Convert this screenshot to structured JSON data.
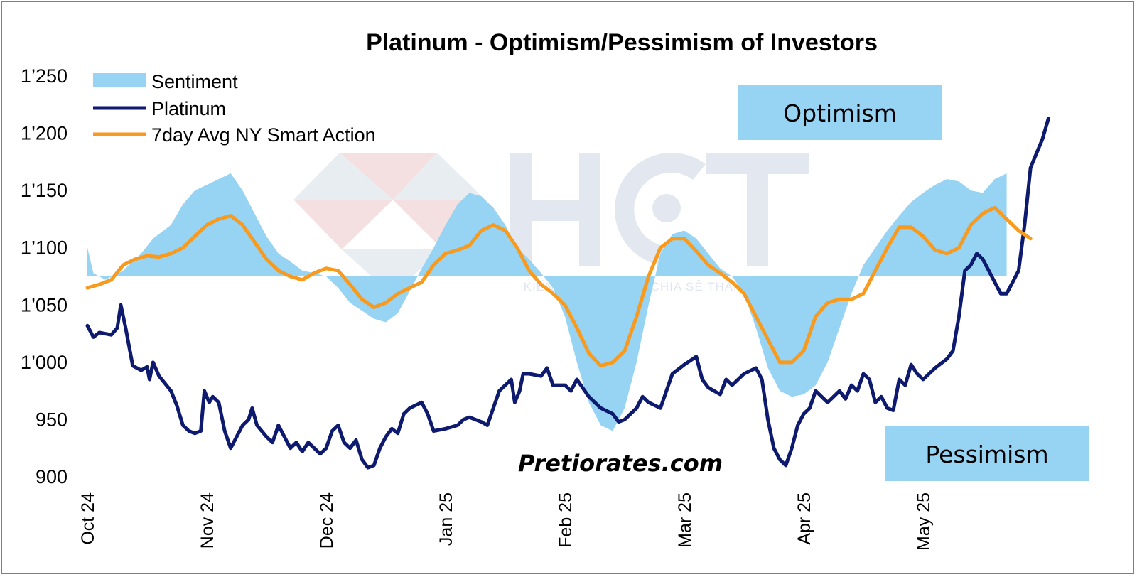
{
  "chart_data": {
    "type": "line",
    "title": "Platinum - Optimism/Pessimism of Investors",
    "ylim": [
      900,
      1250
    ],
    "yticks": [
      "1’250",
      "1’200",
      "1’150",
      "1’100",
      "1’050",
      "1’000",
      "950",
      "900"
    ],
    "ytick_values": [
      1250,
      1200,
      1150,
      1100,
      1050,
      1000,
      950,
      900
    ],
    "xlim": [
      0,
      8.6
    ],
    "xticks": [
      {
        "label": "Oct 24",
        "x": 0
      },
      {
        "label": "Nov 24",
        "x": 1
      },
      {
        "label": "Dec 24",
        "x": 2
      },
      {
        "label": "Jan 25",
        "x": 3
      },
      {
        "label": "Feb 25",
        "x": 4
      },
      {
        "label": "Mar 25",
        "x": 5
      },
      {
        "label": "Apr 25",
        "x": 6
      },
      {
        "label": "May 25",
        "x": 7
      }
    ],
    "legend": [
      "Sentiment",
      "Platinum",
      "7day Avg NY Smart Action"
    ],
    "legend_position": "top-left",
    "zones": {
      "optimism": "Optimism",
      "pessimism": "Pessimism"
    },
    "credit": "Pretiorates.com",
    "watermark": {
      "logo": "HCT",
      "tagline": "KIẾN TẠO GIÁ TRỊ - CHIA SẺ THÀNH CÔNG"
    },
    "sentiment_baseline": 1075,
    "series": [
      {
        "name": "Sentiment",
        "color": "#97d4f4",
        "points": [
          [
            0,
            1100
          ],
          [
            0.05,
            1078
          ],
          [
            0.15,
            1072
          ],
          [
            0.3,
            1080
          ],
          [
            0.45,
            1095
          ],
          [
            0.55,
            1108
          ],
          [
            0.7,
            1120
          ],
          [
            0.8,
            1138
          ],
          [
            0.9,
            1150
          ],
          [
            1.0,
            1155
          ],
          [
            1.1,
            1160
          ],
          [
            1.2,
            1165
          ],
          [
            1.3,
            1150
          ],
          [
            1.4,
            1130
          ],
          [
            1.5,
            1110
          ],
          [
            1.6,
            1095
          ],
          [
            1.7,
            1088
          ],
          [
            1.8,
            1080
          ],
          [
            1.9,
            1078
          ],
          [
            2.0,
            1075
          ],
          [
            2.1,
            1065
          ],
          [
            2.2,
            1052
          ],
          [
            2.3,
            1045
          ],
          [
            2.4,
            1038
          ],
          [
            2.5,
            1035
          ],
          [
            2.6,
            1043
          ],
          [
            2.7,
            1062
          ],
          [
            2.8,
            1082
          ],
          [
            2.9,
            1100
          ],
          [
            3.0,
            1120
          ],
          [
            3.1,
            1138
          ],
          [
            3.2,
            1148
          ],
          [
            3.3,
            1145
          ],
          [
            3.4,
            1135
          ],
          [
            3.5,
            1120
          ],
          [
            3.6,
            1100
          ],
          [
            3.7,
            1090
          ],
          [
            3.8,
            1078
          ],
          [
            3.9,
            1065
          ],
          [
            4.0,
            1040
          ],
          [
            4.1,
            1000
          ],
          [
            4.2,
            965
          ],
          [
            4.3,
            945
          ],
          [
            4.4,
            940
          ],
          [
            4.5,
            960
          ],
          [
            4.6,
            1000
          ],
          [
            4.7,
            1050
          ],
          [
            4.8,
            1095
          ],
          [
            4.9,
            1112
          ],
          [
            5.0,
            1115
          ],
          [
            5.1,
            1108
          ],
          [
            5.2,
            1095
          ],
          [
            5.3,
            1082
          ],
          [
            5.4,
            1075
          ],
          [
            5.5,
            1060
          ],
          [
            5.6,
            1030
          ],
          [
            5.7,
            995
          ],
          [
            5.8,
            975
          ],
          [
            5.9,
            970
          ],
          [
            6.0,
            972
          ],
          [
            6.1,
            980
          ],
          [
            6.2,
            1000
          ],
          [
            6.3,
            1030
          ],
          [
            6.4,
            1060
          ],
          [
            6.5,
            1085
          ],
          [
            6.6,
            1100
          ],
          [
            6.7,
            1115
          ],
          [
            6.8,
            1128
          ],
          [
            6.9,
            1140
          ],
          [
            7.0,
            1148
          ],
          [
            7.1,
            1155
          ],
          [
            7.2,
            1160
          ],
          [
            7.3,
            1158
          ],
          [
            7.4,
            1150
          ],
          [
            7.5,
            1148
          ],
          [
            7.6,
            1160
          ],
          [
            7.7,
            1165
          ]
        ]
      },
      {
        "name": "Platinum",
        "color": "#0d1a6e",
        "points": [
          [
            0,
            1032
          ],
          [
            0.05,
            1022
          ],
          [
            0.1,
            1026
          ],
          [
            0.2,
            1024
          ],
          [
            0.25,
            1030
          ],
          [
            0.28,
            1050
          ],
          [
            0.32,
            1030
          ],
          [
            0.38,
            997
          ],
          [
            0.45,
            993
          ],
          [
            0.5,
            996
          ],
          [
            0.52,
            985
          ],
          [
            0.55,
            1000
          ],
          [
            0.6,
            988
          ],
          [
            0.7,
            975
          ],
          [
            0.75,
            962
          ],
          [
            0.8,
            945
          ],
          [
            0.85,
            940
          ],
          [
            0.9,
            938
          ],
          [
            0.95,
            940
          ],
          [
            0.98,
            975
          ],
          [
            1.02,
            965
          ],
          [
            1.05,
            970
          ],
          [
            1.1,
            965
          ],
          [
            1.15,
            940
          ],
          [
            1.2,
            925
          ],
          [
            1.25,
            935
          ],
          [
            1.3,
            945
          ],
          [
            1.35,
            950
          ],
          [
            1.38,
            960
          ],
          [
            1.42,
            945
          ],
          [
            1.5,
            935
          ],
          [
            1.55,
            930
          ],
          [
            1.6,
            945
          ],
          [
            1.65,
            935
          ],
          [
            1.7,
            925
          ],
          [
            1.75,
            930
          ],
          [
            1.8,
            922
          ],
          [
            1.85,
            930
          ],
          [
            1.9,
            925
          ],
          [
            1.95,
            920
          ],
          [
            2.0,
            925
          ],
          [
            2.05,
            940
          ],
          [
            2.1,
            945
          ],
          [
            2.15,
            930
          ],
          [
            2.2,
            925
          ],
          [
            2.25,
            932
          ],
          [
            2.3,
            915
          ],
          [
            2.35,
            908
          ],
          [
            2.4,
            910
          ],
          [
            2.45,
            925
          ],
          [
            2.5,
            935
          ],
          [
            2.55,
            942
          ],
          [
            2.6,
            938
          ],
          [
            2.65,
            955
          ],
          [
            2.7,
            960
          ],
          [
            2.8,
            965
          ],
          [
            2.85,
            955
          ],
          [
            2.9,
            940
          ],
          [
            3.0,
            942
          ],
          [
            3.1,
            945
          ],
          [
            3.15,
            950
          ],
          [
            3.2,
            952
          ],
          [
            3.3,
            948
          ],
          [
            3.35,
            945
          ],
          [
            3.4,
            960
          ],
          [
            3.45,
            975
          ],
          [
            3.5,
            980
          ],
          [
            3.55,
            985
          ],
          [
            3.58,
            965
          ],
          [
            3.62,
            975
          ],
          [
            3.65,
            990
          ],
          [
            3.7,
            990
          ],
          [
            3.8,
            988
          ],
          [
            3.85,
            995
          ],
          [
            3.9,
            980
          ],
          [
            4.0,
            980
          ],
          [
            4.05,
            975
          ],
          [
            4.1,
            985
          ],
          [
            4.2,
            970
          ],
          [
            4.3,
            960
          ],
          [
            4.4,
            955
          ],
          [
            4.45,
            948
          ],
          [
            4.5,
            950
          ],
          [
            4.6,
            960
          ],
          [
            4.65,
            970
          ],
          [
            4.7,
            965
          ],
          [
            4.8,
            960
          ],
          [
            4.85,
            975
          ],
          [
            4.9,
            990
          ],
          [
            5.0,
            998
          ],
          [
            5.1,
            1005
          ],
          [
            5.15,
            985
          ],
          [
            5.2,
            978
          ],
          [
            5.3,
            972
          ],
          [
            5.35,
            985
          ],
          [
            5.4,
            980
          ],
          [
            5.5,
            990
          ],
          [
            5.6,
            995
          ],
          [
            5.65,
            985
          ],
          [
            5.7,
            950
          ],
          [
            5.75,
            925
          ],
          [
            5.8,
            915
          ],
          [
            5.85,
            910
          ],
          [
            5.9,
            925
          ],
          [
            5.95,
            945
          ],
          [
            6.0,
            955
          ],
          [
            6.05,
            960
          ],
          [
            6.1,
            975
          ],
          [
            6.15,
            970
          ],
          [
            6.2,
            965
          ],
          [
            6.3,
            975
          ],
          [
            6.35,
            968
          ],
          [
            6.4,
            980
          ],
          [
            6.45,
            975
          ],
          [
            6.5,
            990
          ],
          [
            6.55,
            985
          ],
          [
            6.6,
            965
          ],
          [
            6.65,
            970
          ],
          [
            6.7,
            960
          ],
          [
            6.75,
            958
          ],
          [
            6.8,
            985
          ],
          [
            6.85,
            980
          ],
          [
            6.9,
            998
          ],
          [
            6.95,
            990
          ],
          [
            7.0,
            985
          ],
          [
            7.05,
            990
          ],
          [
            7.1,
            995
          ],
          [
            7.2,
            1003
          ],
          [
            7.25,
            1010
          ],
          [
            7.3,
            1040
          ],
          [
            7.35,
            1080
          ],
          [
            7.4,
            1085
          ],
          [
            7.45,
            1095
          ],
          [
            7.5,
            1090
          ],
          [
            7.55,
            1080
          ],
          [
            7.6,
            1070
          ],
          [
            7.65,
            1060
          ],
          [
            7.7,
            1060
          ],
          [
            7.75,
            1070
          ],
          [
            7.8,
            1080
          ],
          [
            7.85,
            1120
          ],
          [
            7.9,
            1170
          ],
          [
            8.0,
            1195
          ],
          [
            8.05,
            1213
          ]
        ]
      },
      {
        "name": "7day Avg NY Smart Action",
        "color": "#f79a1e",
        "points": [
          [
            0,
            1065
          ],
          [
            0.1,
            1068
          ],
          [
            0.2,
            1072
          ],
          [
            0.3,
            1085
          ],
          [
            0.4,
            1090
          ],
          [
            0.5,
            1093
          ],
          [
            0.6,
            1092
          ],
          [
            0.7,
            1095
          ],
          [
            0.8,
            1100
          ],
          [
            0.9,
            1110
          ],
          [
            1.0,
            1120
          ],
          [
            1.1,
            1125
          ],
          [
            1.2,
            1128
          ],
          [
            1.3,
            1120
          ],
          [
            1.4,
            1105
          ],
          [
            1.5,
            1090
          ],
          [
            1.6,
            1080
          ],
          [
            1.7,
            1075
          ],
          [
            1.8,
            1072
          ],
          [
            1.9,
            1078
          ],
          [
            2.0,
            1082
          ],
          [
            2.1,
            1080
          ],
          [
            2.2,
            1068
          ],
          [
            2.3,
            1055
          ],
          [
            2.4,
            1048
          ],
          [
            2.5,
            1052
          ],
          [
            2.6,
            1060
          ],
          [
            2.7,
            1065
          ],
          [
            2.8,
            1070
          ],
          [
            2.9,
            1085
          ],
          [
            3.0,
            1095
          ],
          [
            3.1,
            1098
          ],
          [
            3.2,
            1102
          ],
          [
            3.3,
            1115
          ],
          [
            3.4,
            1120
          ],
          [
            3.5,
            1115
          ],
          [
            3.6,
            1100
          ],
          [
            3.7,
            1080
          ],
          [
            3.8,
            1068
          ],
          [
            3.9,
            1060
          ],
          [
            4.0,
            1050
          ],
          [
            4.1,
            1030
          ],
          [
            4.2,
            1008
          ],
          [
            4.3,
            997
          ],
          [
            4.4,
            1000
          ],
          [
            4.5,
            1010
          ],
          [
            4.6,
            1040
          ],
          [
            4.7,
            1075
          ],
          [
            4.8,
            1100
          ],
          [
            4.9,
            1108
          ],
          [
            5.0,
            1108
          ],
          [
            5.1,
            1097
          ],
          [
            5.2,
            1085
          ],
          [
            5.3,
            1078
          ],
          [
            5.4,
            1070
          ],
          [
            5.5,
            1060
          ],
          [
            5.6,
            1040
          ],
          [
            5.7,
            1020
          ],
          [
            5.8,
            1000
          ],
          [
            5.9,
            1000
          ],
          [
            6.0,
            1010
          ],
          [
            6.1,
            1040
          ],
          [
            6.2,
            1052
          ],
          [
            6.3,
            1055
          ],
          [
            6.4,
            1055
          ],
          [
            6.5,
            1060
          ],
          [
            6.6,
            1080
          ],
          [
            6.7,
            1100
          ],
          [
            6.8,
            1118
          ],
          [
            6.9,
            1118
          ],
          [
            7.0,
            1110
          ],
          [
            7.1,
            1098
          ],
          [
            7.2,
            1095
          ],
          [
            7.3,
            1100
          ],
          [
            7.4,
            1120
          ],
          [
            7.5,
            1130
          ],
          [
            7.6,
            1135
          ],
          [
            7.7,
            1125
          ],
          [
            7.8,
            1115
          ],
          [
            7.9,
            1108
          ]
        ]
      }
    ]
  }
}
